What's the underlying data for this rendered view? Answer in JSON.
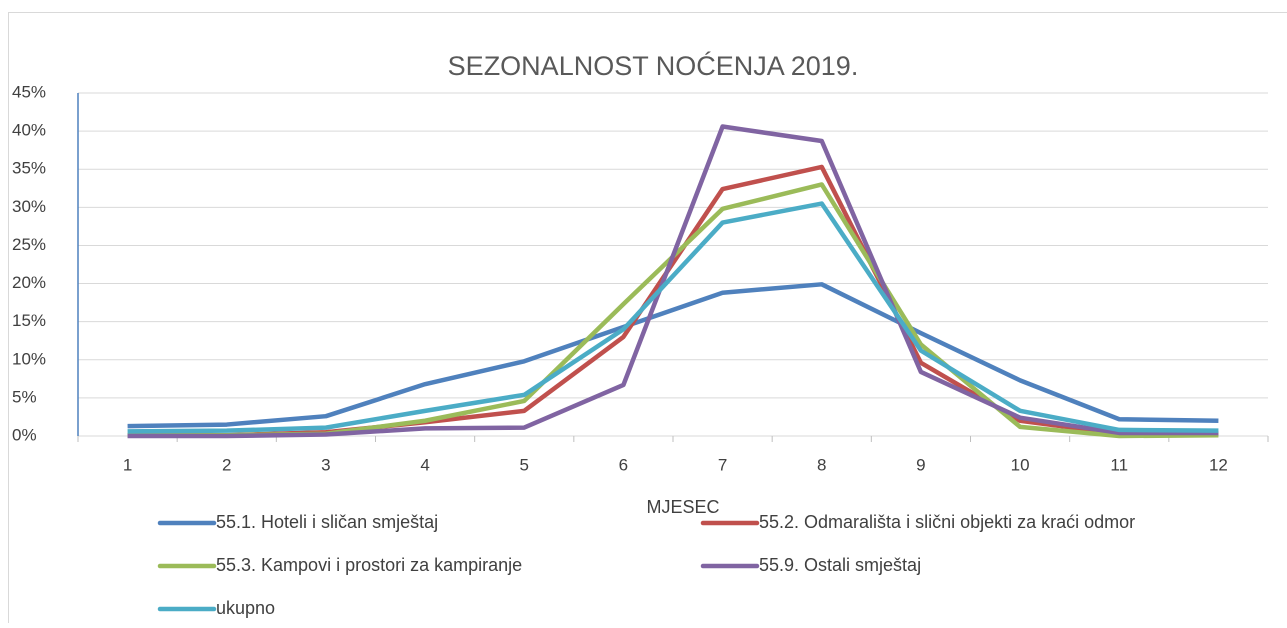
{
  "chart_data": {
    "type": "line",
    "title": "SEZONALNOST NOĆENJA 2019.",
    "x_label": "MJESEC",
    "categories": [
      "1",
      "2",
      "3",
      "4",
      "5",
      "6",
      "7",
      "8",
      "9",
      "10",
      "11",
      "12"
    ],
    "series": [
      {
        "name": "55.1. Hoteli i sličan smještaj",
        "color": "#4f81bd",
        "values": [
          1.3,
          1.5,
          2.6,
          6.8,
          9.8,
          14.3,
          18.8,
          19.9,
          13.5,
          7.3,
          2.2,
          2.0
        ]
      },
      {
        "name": "55.2. Odmarališta i slični objekti za kraći odmor",
        "color": "#c0504d",
        "values": [
          0.1,
          0.1,
          0.5,
          1.8,
          3.3,
          13.0,
          32.4,
          35.3,
          9.6,
          2.0,
          0.3,
          0.3
        ]
      },
      {
        "name": "55.3. Kampovi i prostori za kampiranje",
        "color": "#9bbb59",
        "values": [
          0.1,
          0.1,
          0.3,
          2.0,
          4.6,
          17.3,
          29.8,
          33.0,
          12.0,
          1.2,
          0,
          0.1
        ]
      },
      {
        "name": "55.9. Ostali smještaj",
        "color": "#8064a2",
        "values": [
          0,
          0,
          0.2,
          1.0,
          1.1,
          6.7,
          40.6,
          38.7,
          8.4,
          2.4,
          0.4,
          0.4
        ]
      },
      {
        "name": "ukupno",
        "color": "#4bacc6",
        "values": [
          0.6,
          0.7,
          1.1,
          3.3,
          5.4,
          14.0,
          28.0,
          30.5,
          11.2,
          3.3,
          0.8,
          0.7
        ]
      }
    ],
    "ylim": [
      0,
      45
    ],
    "yticks": [
      {
        "value": 0,
        "label": "0%"
      },
      {
        "value": 5,
        "label": "5%"
      },
      {
        "value": 10,
        "label": "10%"
      },
      {
        "value": 15,
        "label": "15%"
      },
      {
        "value": 20,
        "label": "20%"
      },
      {
        "value": 25,
        "label": "25%"
      },
      {
        "value": 30,
        "label": "30%"
      },
      {
        "value": 35,
        "label": "35%"
      },
      {
        "value": 40,
        "label": "40%"
      },
      {
        "value": 45,
        "label": "45%"
      }
    ],
    "grid": true,
    "legend": "bottom"
  }
}
